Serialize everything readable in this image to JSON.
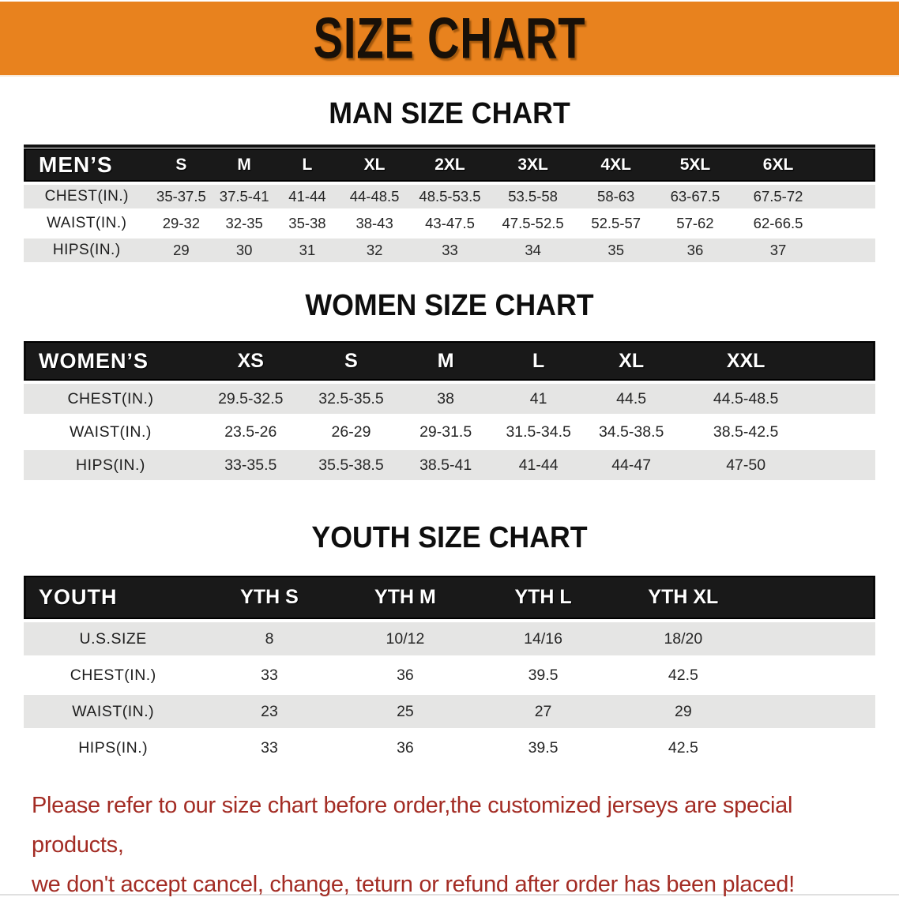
{
  "banner": {
    "title": "SIZE CHART"
  },
  "colors": {
    "banner_bg": "#E8821E",
    "header_bar": "#191919",
    "row_stripe": "#E5E5E4",
    "disclaimer_red": "#A32C24"
  },
  "sections": [
    {
      "heading": "MAN SIZE CHART",
      "table": {
        "header": [
          "MEN’S",
          "S",
          "M",
          "L",
          "XL",
          "2XL",
          "3XL",
          "4XL",
          "5XL",
          "6XL"
        ],
        "rows": [
          {
            "label": "CHEST(IN.)",
            "values": [
              "35-37.5",
              "37.5-41",
              "41-44",
              "44-48.5",
              "48.5-53.5",
              "53.5-58",
              "58-63",
              "63-67.5",
              "67.5-72"
            ]
          },
          {
            "label": "WAIST(IN.)",
            "values": [
              "29-32",
              "32-35",
              "35-38",
              "38-43",
              "43-47.5",
              "47.5-52.5",
              "52.5-57",
              "57-62",
              "62-66.5"
            ]
          },
          {
            "label": "HIPS(IN.)",
            "values": [
              "29",
              "30",
              "31",
              "32",
              "33",
              "34",
              "35",
              "36",
              "37"
            ]
          }
        ]
      }
    },
    {
      "heading": "WOMEN SIZE CHART",
      "table": {
        "header": [
          "WOMEN’S",
          "XS",
          "S",
          "M",
          "L",
          "XL",
          "XXL"
        ],
        "rows": [
          {
            "label": "CHEST(IN.)",
            "values": [
              "29.5-32.5",
              "32.5-35.5",
              "38",
              "41",
              "44.5",
              "44.5-48.5"
            ]
          },
          {
            "label": "WAIST(IN.)",
            "values": [
              "23.5-26",
              "26-29",
              "29-31.5",
              "31.5-34.5",
              "34.5-38.5",
              "38.5-42.5"
            ]
          },
          {
            "label": "HIPS(IN.)",
            "values": [
              "33-35.5",
              "35.5-38.5",
              "38.5-41",
              "41-44",
              "44-47",
              "47-50"
            ]
          }
        ]
      }
    },
    {
      "heading": "YOUTH SIZE CHART",
      "table": {
        "header": [
          "YOUTH",
          "YTH S",
          "YTH M",
          "YTH L",
          "YTH XL"
        ],
        "rows": [
          {
            "label": "U.S.SIZE",
            "values": [
              "8",
              "10/12",
              "14/16",
              "18/20"
            ]
          },
          {
            "label": "CHEST(IN.)",
            "values": [
              "33",
              "36",
              "39.5",
              "42.5"
            ]
          },
          {
            "label": "WAIST(IN.)",
            "values": [
              "23",
              "25",
              "27",
              "29"
            ]
          },
          {
            "label": "HIPS(IN.)",
            "values": [
              "33",
              "36",
              "39.5",
              "42.5"
            ]
          }
        ]
      }
    }
  ],
  "disclaimer": {
    "line1": "Please refer to our size chart before order,the customized jerseys are special products,",
    "line2": "we don't accept cancel, change, teturn or refund after order has been placed!"
  }
}
